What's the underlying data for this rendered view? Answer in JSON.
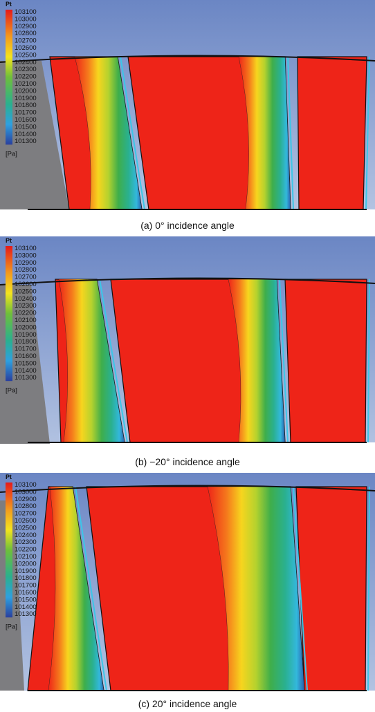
{
  "panels": [
    {
      "legend_title": "Pt",
      "legend_levels": [
        103100,
        103000,
        102900,
        102800,
        102700,
        102600,
        102500,
        102400,
        102300,
        102200,
        102100,
        102000,
        101900,
        101800,
        101700,
        101600,
        101500,
        101400,
        101300
      ],
      "unit": "[Pa]",
      "caption": "(a)  0° incidence angle"
    },
    {
      "legend_title": "Pt",
      "legend_levels": [
        103100,
        103000,
        102900,
        102800,
        102700,
        102600,
        102500,
        102400,
        102300,
        102200,
        102100,
        102000,
        101900,
        101800,
        101700,
        101600,
        101500,
        101400,
        101300
      ],
      "unit": "[Pa]",
      "caption": "(b)  −20° incidence angle"
    },
    {
      "legend_title": "Pt",
      "legend_levels": [
        103100,
        103000,
        102900,
        102800,
        102700,
        102600,
        102500,
        102400,
        102300,
        102200,
        102100,
        102000,
        101900,
        101800,
        101700,
        101600,
        101500,
        101400,
        101300
      ],
      "unit": "[Pa]",
      "caption": "(c)  20° incidence angle"
    }
  ]
}
